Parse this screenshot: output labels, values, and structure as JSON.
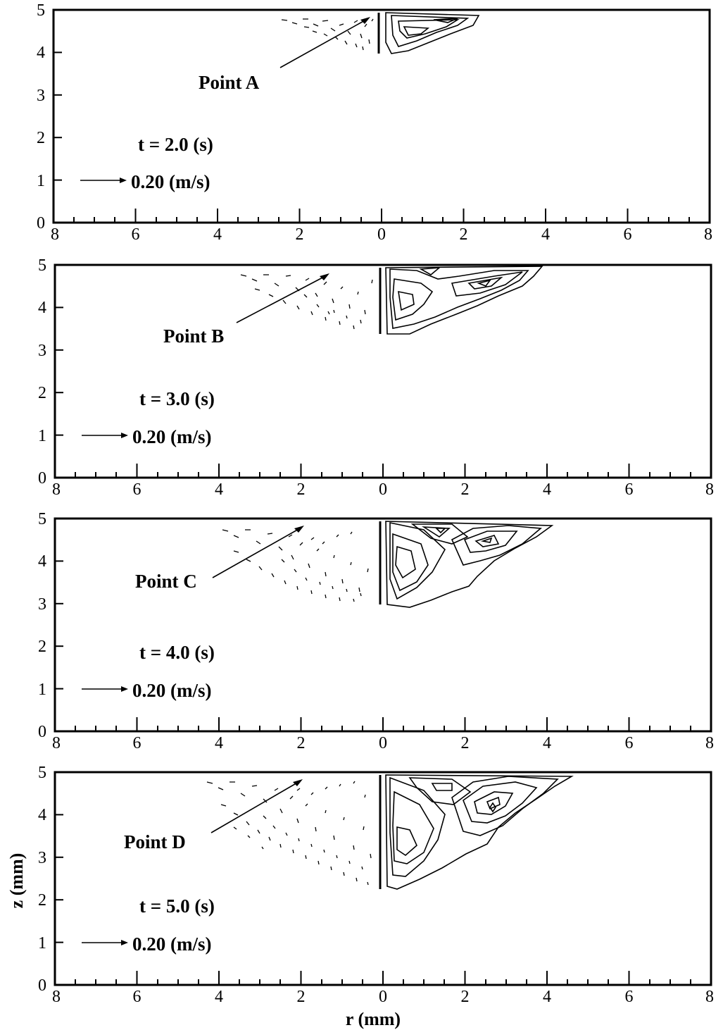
{
  "figure": {
    "x_axis_title": "r (mm)",
    "y_axis_title": "z (mm)",
    "x_tick_labels": [
      "8",
      "6",
      "4",
      "2",
      "0",
      "2",
      "4",
      "6",
      "8"
    ],
    "y_tick_labels": [
      "0",
      "1",
      "2",
      "3",
      "4",
      "5"
    ],
    "panels": [
      {
        "time_label": "t = 2.0 (s)",
        "point_label": "Point A",
        "scale_label": "0.20 (m/s)"
      },
      {
        "time_label": "t = 3.0 (s)",
        "point_label": "Point B",
        "scale_label": "0.20 (m/s)"
      },
      {
        "time_label": "t = 4.0 (s)",
        "point_label": "Point C",
        "scale_label": "0.20 (m/s)"
      },
      {
        "time_label": "t = 5.0 (s)",
        "point_label": "Point D",
        "scale_label": "0.20 (m/s)"
      }
    ]
  }
}
